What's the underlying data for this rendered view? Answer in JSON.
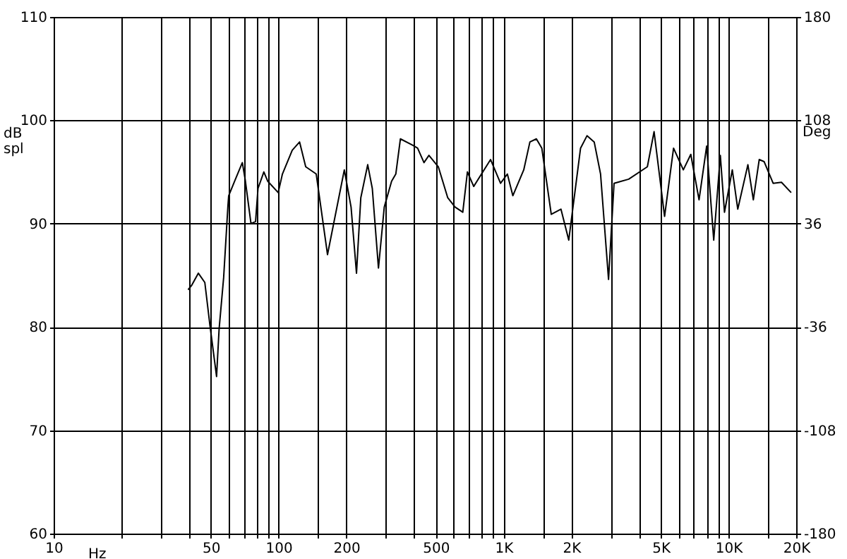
{
  "chart_data": {
    "type": "line",
    "xlabel": "Hz",
    "ylabel": "dB spl",
    "y2label": "Deg",
    "log": "x",
    "grid": true,
    "line_style": "solid",
    "marker": "none",
    "xlim": [
      10,
      20000
    ],
    "xticks": [
      10,
      {
        "value": 20,
        "label": null
      },
      {
        "value": 30,
        "label": null
      },
      {
        "value": 40,
        "label": null
      },
      50,
      {
        "value": 60,
        "label": null
      },
      {
        "value": 70,
        "label": null
      },
      {
        "value": 80,
        "label": null
      },
      {
        "value": 90,
        "label": null
      },
      100,
      {
        "value": 150,
        "label": null
      },
      200,
      {
        "value": 300,
        "label": null
      },
      {
        "value": 400,
        "label": null
      },
      500,
      {
        "value": 600,
        "label": null
      },
      {
        "value": 700,
        "label": null
      },
      {
        "value": 800,
        "label": null
      },
      {
        "value": 900,
        "label": null
      },
      {
        "value": 1000,
        "label": "1K"
      },
      {
        "value": 1500,
        "label": null
      },
      {
        "value": 2000,
        "label": "2K"
      },
      {
        "value": 3000,
        "label": null
      },
      {
        "value": 4000,
        "label": null
      },
      {
        "value": 5000,
        "label": "5K"
      },
      {
        "value": 6000,
        "label": null
      },
      {
        "value": 7000,
        "label": null
      },
      {
        "value": 8000,
        "label": null
      },
      {
        "value": 9000,
        "label": null
      },
      {
        "value": 10000,
        "label": "10K"
      },
      {
        "value": 15000,
        "label": null
      },
      {
        "value": 20000,
        "label": "20K"
      }
    ],
    "ylim": [
      60,
      110
    ],
    "yticks": [
      60,
      70,
      80,
      90,
      100,
      110
    ],
    "y2lim": [
      -180,
      180
    ],
    "y2ticks": [
      -180,
      -108,
      -36,
      36,
      108,
      180
    ],
    "x": [
      39.6,
      41,
      44,
      47,
      49.5,
      53,
      54.4,
      57,
      59.5,
      60,
      64.3,
      69,
      71,
      75.4,
      79,
      81,
      86,
      89.5,
      99.6,
      104,
      115,
      124,
      132,
      147,
      165,
      196,
      210,
      222,
      232,
      249,
      261,
      278,
      295,
      318,
      332,
      348,
      394,
      415,
      443,
      466,
      513,
      565,
      609,
      659,
      691,
      737,
      876,
      970,
      1040,
      1100,
      1230,
      1310,
      1400,
      1480,
      1630,
      1800,
      1950,
      2200,
      2350,
      2530,
      2700,
      2930,
      3100,
      3600,
      4360,
      4670,
      5200,
      5700,
      6300,
      6800,
      7400,
      8000,
      8600,
      9200,
      9600,
      10400,
      11000,
      12200,
      12900,
      13700,
      14400,
      15800,
      17200,
      19000
    ],
    "series": [
      {
        "color": "#000000",
        "values": [
          83.6,
          84,
          85.2,
          84.3,
          80.2,
          75.2,
          79.8,
          84.8,
          91.6,
          92.7,
          94.3,
          95.9,
          94.3,
          90,
          90.2,
          93.4,
          95,
          94.1,
          93,
          94.8,
          97.1,
          97.9,
          95.5,
          94.8,
          87,
          95.2,
          91.6,
          85.2,
          92.5,
          95.7,
          93.4,
          85.7,
          91.6,
          94.1,
          94.8,
          98.2,
          97.6,
          97.3,
          95.9,
          96.6,
          95.5,
          92.5,
          91.6,
          91.1,
          95,
          93.6,
          96.2,
          93.9,
          94.8,
          92.7,
          95.2,
          97.9,
          98.2,
          97.3,
          90.9,
          91.4,
          88.4,
          97.3,
          98.5,
          97.9,
          94.8,
          84.6,
          93.9,
          94.3,
          95.5,
          98.9,
          90.7,
          97.3,
          95.2,
          96.7,
          92.3,
          97.5,
          88.4,
          96.6,
          91.1,
          95.2,
          91.4,
          95.7,
          92.3,
          96.2,
          96,
          93.9,
          94,
          93
        ]
      }
    ]
  }
}
